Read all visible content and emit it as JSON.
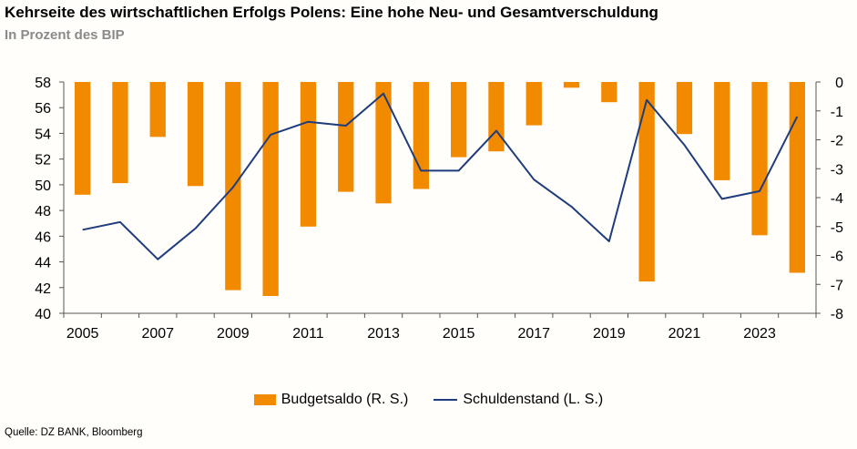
{
  "title": "Kehrseite des wirtschaftlichen Erfolgs Polens: Eine hohe Neu- und Gesamtverschuldung",
  "subtitle": "In Prozent des BIP",
  "source": "Quelle: DZ BANK, Bloomberg",
  "colors": {
    "bar": "#f28a00",
    "line": "#1f3c7d",
    "axis": "#555555",
    "text": "#000000"
  },
  "chart_data": {
    "type": "bar+line",
    "categories": [
      "2005",
      "2006",
      "2007",
      "2008",
      "2009",
      "2010",
      "2011",
      "2012",
      "2013",
      "2014",
      "2015",
      "2016",
      "2017",
      "2018",
      "2019",
      "2020",
      "2021",
      "2022",
      "2023",
      "2024"
    ],
    "x_tick_labels": [
      "2005",
      "2007",
      "2009",
      "2011",
      "2013",
      "2015",
      "2017",
      "2019",
      "2021",
      "2023"
    ],
    "series": [
      {
        "name": "Budgetsaldo (R. S.)",
        "type": "bar",
        "axis": "right",
        "values": [
          -3.9,
          -3.5,
          -1.9,
          -3.6,
          -7.2,
          -7.4,
          -5.0,
          -3.8,
          -4.2,
          -3.7,
          -2.6,
          -2.4,
          -1.5,
          -0.2,
          -0.7,
          -6.9,
          -1.8,
          -3.4,
          -5.3,
          -6.6
        ]
      },
      {
        "name": "Schuldenstand (L. S.)",
        "type": "line",
        "axis": "left",
        "values": [
          46.5,
          47.1,
          44.2,
          46.6,
          49.8,
          53.9,
          54.9,
          54.6,
          57.1,
          51.1,
          51.1,
          54.2,
          50.4,
          48.3,
          45.6,
          56.6,
          53.1,
          48.9,
          49.5,
          55.3
        ]
      }
    ],
    "y_left": {
      "min": 40,
      "max": 58,
      "ticks": [
        "58",
        "56",
        "54",
        "52",
        "50",
        "48",
        "46",
        "44",
        "42",
        "40"
      ]
    },
    "y_right": {
      "min": -8,
      "max": 0,
      "ticks": [
        "0",
        "-1",
        "-2",
        "-3",
        "-4",
        "-5",
        "-6",
        "-7",
        "-8"
      ]
    },
    "legend": {
      "placement": "bottom",
      "items": [
        "Budgetsaldo (R. S.)",
        "Schuldenstand (L. S.)"
      ]
    },
    "grid": false
  }
}
